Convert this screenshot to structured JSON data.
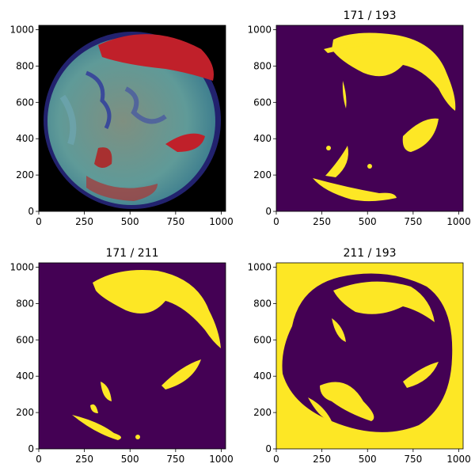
{
  "chart_data": [
    {
      "type": "image",
      "xlim": [
        0,
        1024
      ],
      "ylim": [
        0,
        1024
      ],
      "xticks": [
        0,
        250,
        500,
        750,
        1000
      ],
      "yticks": [
        0,
        200,
        400,
        600,
        800,
        1000
      ]
    },
    {
      "type": "image",
      "title": "171 / 193",
      "xlim": [
        0,
        1024
      ],
      "ylim": [
        0,
        1024
      ],
      "xticks": [
        0,
        250,
        500,
        750,
        1000
      ],
      "yticks": [
        0,
        200,
        400,
        600,
        800,
        1000
      ]
    },
    {
      "type": "image",
      "title": "171 / 211",
      "xlim": [
        0,
        1024
      ],
      "ylim": [
        0,
        1024
      ],
      "xticks": [
        0,
        250,
        500,
        750,
        1000
      ],
      "yticks": [
        0,
        200,
        400,
        600,
        800,
        1000
      ]
    },
    {
      "type": "image",
      "title": "211 / 193",
      "xlim": [
        0,
        1024
      ],
      "ylim": [
        0,
        1024
      ],
      "xticks": [
        0,
        250,
        500,
        750,
        1000
      ],
      "yticks": [
        0,
        200,
        400,
        600,
        800,
        1000
      ]
    }
  ]
}
